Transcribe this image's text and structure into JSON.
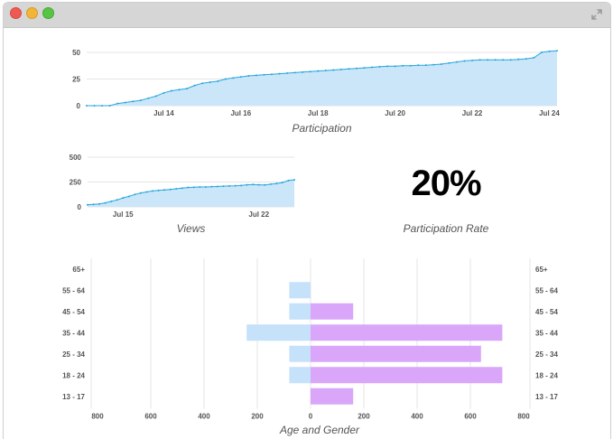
{
  "window": {
    "controls": [
      "close",
      "minimize",
      "maximize"
    ],
    "expand_icon": "expand-arrows-icon"
  },
  "participation_rate": {
    "value": "20%",
    "caption": "Participation Rate"
  },
  "colors": {
    "line": "#27a5dc",
    "area": "#cbe6f8",
    "male_bar": "#c6e1fa",
    "female_bar": "#daa6f9",
    "grid": "#e4e4e4"
  },
  "chart_data": [
    {
      "type": "area",
      "title": "Participation",
      "x_ticks": [
        "Jul 14",
        "Jul 16",
        "Jul 18",
        "Jul 20",
        "Jul 22",
        "Jul 24"
      ],
      "x_tick_index": [
        10,
        20,
        30,
        40,
        50,
        60
      ],
      "ylim": [
        0,
        50
      ],
      "y_ticks": [
        0,
        25,
        50
      ],
      "grid": true,
      "values": [
        0,
        0,
        0,
        0,
        2,
        3,
        4,
        5,
        7,
        9,
        12,
        14,
        15,
        16,
        19,
        21,
        22,
        23,
        25,
        26,
        27,
        28,
        28.5,
        29,
        29.5,
        30,
        30.5,
        31,
        31.5,
        32,
        32.5,
        33,
        33.5,
        34,
        34.5,
        35,
        35.5,
        36,
        36.5,
        37,
        37,
        37.5,
        37.5,
        38,
        38,
        38.5,
        39,
        40,
        41,
        42,
        42.5,
        43,
        43,
        43,
        43,
        43,
        43.5,
        44,
        45,
        50,
        51,
        51.5
      ]
    },
    {
      "type": "area",
      "title": "Views",
      "x_ticks": [
        "Jul 15",
        "Jul 22"
      ],
      "x_tick_index": [
        6,
        29
      ],
      "ylim": [
        0,
        500
      ],
      "y_ticks": [
        0,
        250,
        500
      ],
      "grid": true,
      "values": [
        20,
        25,
        30,
        40,
        55,
        70,
        90,
        105,
        125,
        140,
        150,
        160,
        165,
        170,
        175,
        182,
        188,
        195,
        198,
        200,
        200,
        203,
        205,
        208,
        210,
        212,
        215,
        222,
        225,
        222,
        220,
        228,
        235,
        245,
        265,
        272
      ]
    },
    {
      "type": "bar",
      "title": "Age and Gender",
      "orientation": "horizontal-diverging",
      "categories": [
        "65+",
        "55 - 64",
        "45 - 54",
        "35 - 44",
        "25 - 34",
        "18 - 24",
        "13 - 17"
      ],
      "x_ticks": [
        "800",
        "600",
        "400",
        "200",
        "0",
        "200",
        "400",
        "600",
        "800"
      ],
      "xlim": [
        -800,
        800
      ],
      "grid": true,
      "series": [
        {
          "color": "#c6e1fa",
          "values": [
            0,
            -80,
            -80,
            -240,
            -80,
            -80,
            0
          ]
        },
        {
          "color": "#daa6f9",
          "values": [
            0,
            0,
            160,
            720,
            640,
            720,
            160
          ]
        }
      ]
    }
  ]
}
